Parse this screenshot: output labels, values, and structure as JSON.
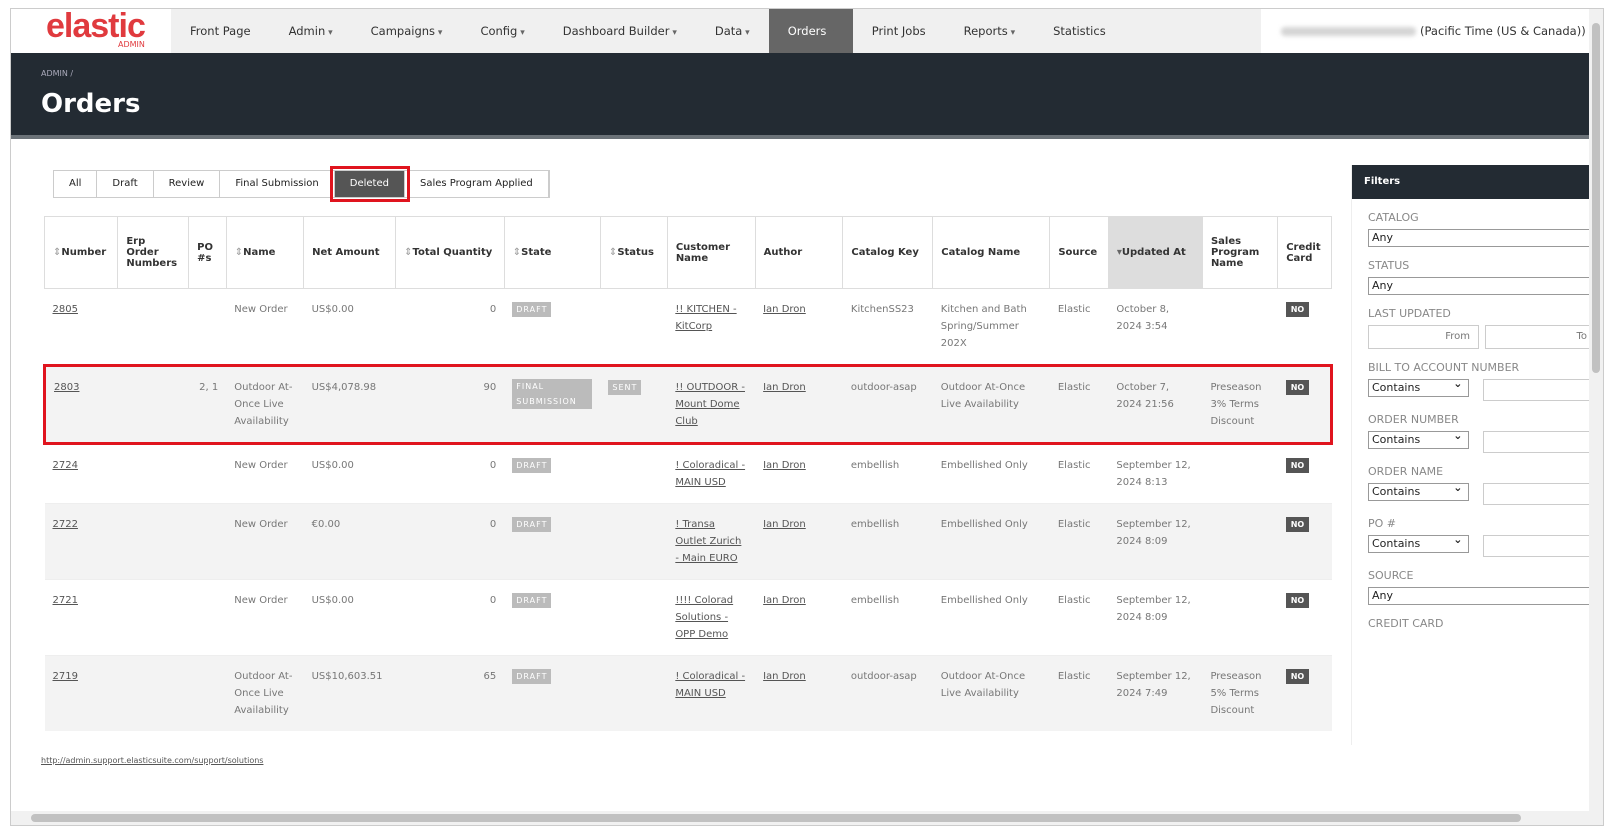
{
  "nav": {
    "logo": "elastic",
    "logo_sub": "ADMIN",
    "items": [
      "Front Page",
      "Admin",
      "Campaigns",
      "Config",
      "Dashboard Builder",
      "Data",
      "Orders",
      "Print Jobs",
      "Reports",
      "Statistics"
    ],
    "timezone": "(Pacific Time (US & Canada))"
  },
  "header": {
    "breadcrumb": "ADMIN /",
    "title": "Orders"
  },
  "tabs": [
    "All",
    "Draft",
    "Review",
    "Final Submission",
    "Deleted",
    "Sales Program Applied"
  ],
  "table": {
    "columns": [
      "Number",
      "Erp Order Numbers",
      "PO #s",
      "Name",
      "Net Amount",
      "Total Quantity",
      "State",
      "Status",
      "Customer Name",
      "Author",
      "Catalog Key",
      "Catalog Name",
      "Source",
      "Updated At",
      "Sales Program Name",
      "Credit Card"
    ],
    "rows": [
      [
        "2805",
        null,
        null,
        "New Order",
        "US$0.00",
        "0",
        "DRAFT",
        null,
        "!! KITCHEN - KitCorp",
        "Ian Dron",
        "KitchenSS23",
        "Kitchen and Bath Spring/Summer 202X",
        "Elastic",
        "October 8, 2024 3:54",
        null,
        "NO"
      ],
      [
        "2803",
        null,
        "2, 1",
        "Outdoor At-Once Live Availability",
        "US$4,078.98",
        "90",
        "FINAL SUBMISSION",
        "SENT",
        "!! OUTDOOR - Mount Dome Club",
        "Ian Dron",
        "outdoor-asap",
        "Outdoor At-Once Live Availability",
        "Elastic",
        "October 7, 2024 21:56",
        "Preseason 3% Terms Discount",
        "NO"
      ],
      [
        "2724",
        null,
        null,
        "New Order",
        "US$0.00",
        "0",
        "DRAFT",
        null,
        "! Coloradical - MAIN USD",
        "Ian Dron",
        "embellish",
        "Embellished Only",
        "Elastic",
        "September 12, 2024 8:13",
        null,
        "NO"
      ],
      [
        "2722",
        null,
        null,
        "New Order",
        "€0.00",
        "0",
        "DRAFT",
        null,
        "! Transa Outlet Zurich - Main EURO",
        "Ian Dron",
        "embellish",
        "Embellished Only",
        "Elastic",
        "September 12, 2024 8:09",
        null,
        "NO"
      ],
      [
        "2721",
        null,
        null,
        "New Order",
        "US$0.00",
        "0",
        "DRAFT",
        null,
        "!!!! Colorad Solutions - OPP Demo",
        "Ian Dron",
        "embellish",
        "Embellished Only",
        "Elastic",
        "September 12, 2024 8:09",
        null,
        "NO"
      ],
      [
        "2719",
        null,
        null,
        "Outdoor At-Once Live Availability",
        "US$10,603.51",
        "65",
        "DRAFT",
        null,
        "! Coloradical - MAIN USD",
        "Ian Dron",
        "outdoor-asap",
        "Outdoor At-Once Live Availability",
        "Elastic",
        "September 12, 2024 7:49",
        "Preseason 5% Terms Discount",
        "NO"
      ]
    ]
  },
  "filters": {
    "title": "Filters",
    "sections": [
      {
        "label": "CATALOG",
        "select": "Any"
      },
      {
        "label": "STATUS",
        "select": "Any"
      },
      {
        "label": "LAST UPDATED",
        "from": "From",
        "to": "To"
      },
      {
        "label": "BILL TO ACCOUNT NUMBER",
        "match": "Contains"
      },
      {
        "label": "ORDER NUMBER",
        "match": "Contains"
      },
      {
        "label": "ORDER NAME",
        "match": "Contains"
      },
      {
        "label": "PO #",
        "match": "Contains"
      },
      {
        "label": "SOURCE",
        "select": "Any"
      },
      {
        "label": "CREDIT CARD"
      }
    ]
  },
  "footer": {
    "link": "http://admin.support.elasticsuite.com/support/solutions"
  }
}
